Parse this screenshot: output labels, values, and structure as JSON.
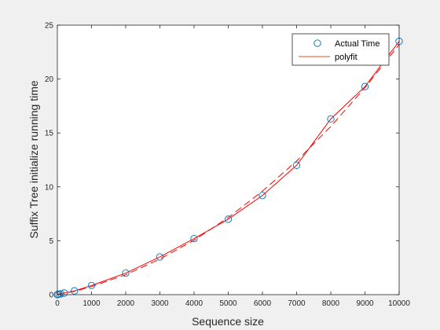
{
  "chart_data": {
    "type": "line",
    "title": "",
    "xlabel": "Sequence size",
    "ylabel": "Suffix Tree initialize running time",
    "xlim": [
      0,
      10000
    ],
    "ylim": [
      0,
      25
    ],
    "xticks": [
      0,
      1000,
      2000,
      3000,
      4000,
      5000,
      6000,
      7000,
      8000,
      9000,
      10000
    ],
    "yticks": [
      0,
      5,
      10,
      15,
      20,
      25
    ],
    "grid": false,
    "legend_position": "top-right",
    "series": [
      {
        "name": "Actual Time",
        "style": "markers",
        "marker": "circle",
        "color": "#0072bd",
        "x": [
          0,
          10,
          50,
          100,
          200,
          500,
          1000,
          2000,
          3000,
          4000,
          5000,
          6000,
          7000,
          8000,
          9000,
          10000
        ],
        "y": [
          0.0,
          0.02,
          0.05,
          0.08,
          0.15,
          0.35,
          0.85,
          2.0,
          3.5,
          5.2,
          7.0,
          9.2,
          12.0,
          16.3,
          19.3,
          23.5
        ]
      },
      {
        "name": "polyfit",
        "style": "line",
        "color": "#d95319",
        "x": [
          0,
          10,
          50,
          100,
          200,
          500,
          1000,
          2000,
          3000,
          4000,
          5000,
          6000,
          7000,
          8000,
          9000,
          10000
        ],
        "y": [
          0.0,
          0.02,
          0.05,
          0.08,
          0.15,
          0.35,
          0.85,
          2.0,
          3.5,
          5.2,
          7.0,
          9.2,
          12.0,
          16.3,
          19.3,
          23.5
        ]
      },
      {
        "name": "",
        "style": "dashed",
        "color": "#ff0000",
        "x": [
          0,
          500,
          1000,
          2000,
          3000,
          4000,
          5000,
          6000,
          7000,
          8000,
          9000,
          10000
        ],
        "y": [
          0.05,
          0.3,
          0.75,
          1.85,
          3.3,
          5.05,
          7.15,
          9.6,
          12.4,
          15.6,
          19.2,
          23.2
        ]
      }
    ]
  }
}
